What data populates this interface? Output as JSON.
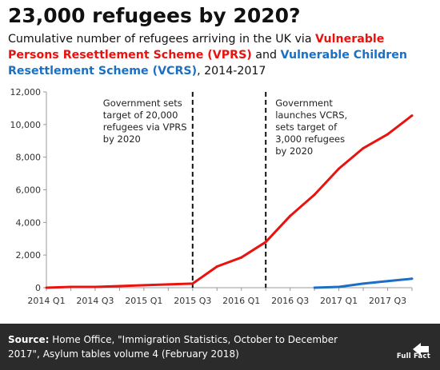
{
  "header": {
    "title": "23,000 refugees by 2020?",
    "subtitle": {
      "part1": "Cumulative number of refugees arriving in the UK via ",
      "vprs": "Vulnerable Persons Resettlement Scheme (VPRS)",
      "part2": " and ",
      "vcrs": "Vulnerable Children Resettlement Scheme (VCRS)",
      "part3": ", 2014-2017"
    }
  },
  "colors": {
    "vprs": "#e8130f",
    "vcrs": "#1c6fc1",
    "axis": "#999999",
    "footer_bg": "#2b2b2b"
  },
  "chart_data": {
    "type": "line",
    "categories": [
      "2014 Q1",
      "2014 Q2",
      "2014 Q3",
      "2014 Q4",
      "2015 Q1",
      "2015 Q2",
      "2015 Q3",
      "2015 Q4",
      "2016 Q1",
      "2016 Q2",
      "2016 Q3",
      "2016 Q4",
      "2017 Q1",
      "2017 Q2",
      "2017 Q3",
      "2017 Q4"
    ],
    "x_tick_labels": [
      "2014 Q1",
      "",
      "2014 Q3",
      "",
      "2015 Q1",
      "",
      "2015 Q3",
      "",
      "2016 Q1",
      "",
      "2016 Q3",
      "",
      "2017 Q1",
      "",
      "2017 Q3",
      ""
    ],
    "series": [
      {
        "key": "vprs",
        "values": [
          0,
          50,
          50,
          100,
          150,
          200,
          250,
          1300,
          1850,
          2800,
          4400,
          5700,
          7300,
          8550,
          9400,
          10550
        ]
      },
      {
        "key": "vcrs",
        "values": [
          null,
          null,
          null,
          null,
          null,
          null,
          null,
          null,
          null,
          null,
          null,
          0,
          50,
          250,
          400,
          550
        ]
      }
    ],
    "ylim": [
      0,
      12000
    ],
    "y_ticks": [
      0,
      2000,
      4000,
      6000,
      8000,
      10000,
      12000
    ],
    "y_tick_labels": [
      "0",
      "2,000",
      "4,000",
      "6,000",
      "8,000",
      "10,000",
      "12,000"
    ],
    "grid": false,
    "annotations": [
      {
        "at": "2015 Q3",
        "lines": [
          "Government sets",
          "target of 20,000",
          "refugees via VPRS",
          "by 2020"
        ]
      },
      {
        "at": "2016 Q2",
        "lines": [
          "Government",
          "launches VCRS,",
          "sets target of",
          "3,000 refugees",
          "by 2020"
        ]
      }
    ]
  },
  "footer": {
    "source_label": "Source:",
    "source_text": " Home Office, \"Immigration Statistics, October to December 2017\", Asylum tables volume 4 (February 2018)",
    "logo_text": "Full Fact"
  }
}
